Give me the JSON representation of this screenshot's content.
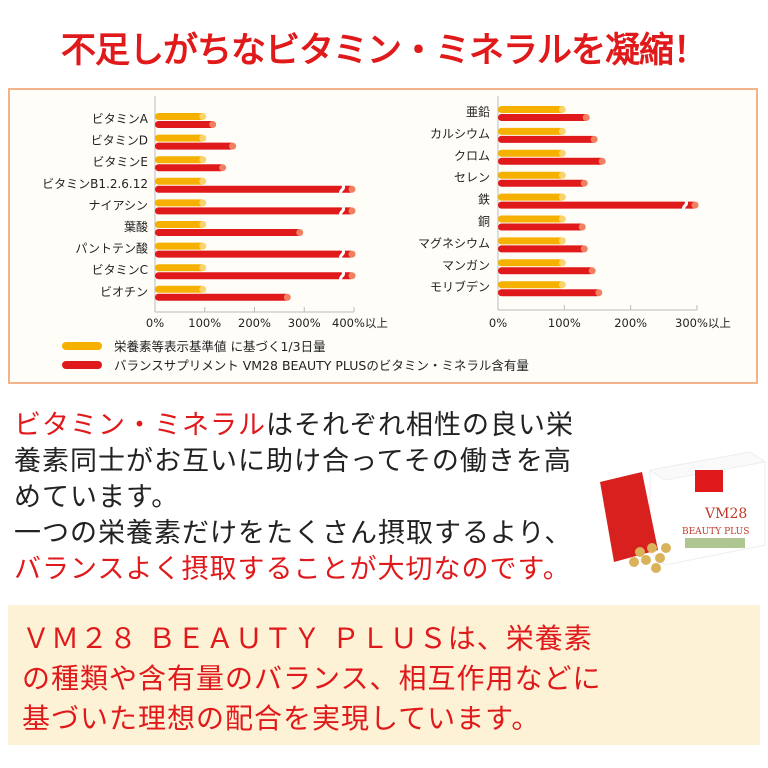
{
  "title": "不足しがちなビタミン・ミネラルを凝縮！",
  "colors": {
    "reference": "#f5b000",
    "product": "#e0191b",
    "accent": "#e0191b",
    "box_border": "#f2b38a",
    "bottom_bg": "#fdf1d6"
  },
  "chart_data": [
    {
      "type": "bar",
      "orientation": "horizontal",
      "categories": [
        "ビタミンA",
        "ビタミンD",
        "ビタミンE",
        "ビタミンB1.2.6.12",
        "ナイアシン",
        "葉酸",
        "パントテン酸",
        "ビタミンC",
        "ビオチン"
      ],
      "series": [
        {
          "name": "栄養素等表示基準値 に基づく1/3日量",
          "values": [
            100,
            100,
            100,
            100,
            100,
            100,
            100,
            100,
            100
          ]
        },
        {
          "name": "バランスサプリメント VM28 BEAUTY PLUSのビタミン・ミネラル含有量",
          "values": [
            120,
            160,
            140,
            400,
            400,
            295,
            400,
            400,
            270
          ],
          "over_max": [
            false,
            false,
            false,
            true,
            true,
            false,
            true,
            true,
            false
          ]
        }
      ],
      "xlim": [
        0,
        400
      ],
      "tick_labels": [
        "0%",
        "100%",
        "200%",
        "300%",
        "400%以上"
      ]
    },
    {
      "type": "bar",
      "orientation": "horizontal",
      "categories": [
        "亜鉛",
        "カルシウム",
        "クロム",
        "セレン",
        "鉄",
        "銅",
        "マグネシウム",
        "マンガン",
        "モリブデン"
      ],
      "series": [
        {
          "name": "栄養素等表示基準値 に基づく1/3日量",
          "values": [
            100,
            100,
            100,
            100,
            100,
            100,
            100,
            100,
            100
          ]
        },
        {
          "name": "バランスサプリメント VM28 BEAUTY PLUSのビタミン・ミネラル含有量",
          "values": [
            136,
            148,
            160,
            133,
            300,
            130,
            133,
            145,
            155
          ],
          "over_max": [
            false,
            false,
            false,
            false,
            true,
            false,
            false,
            false,
            false
          ]
        }
      ],
      "xlim": [
        0,
        300
      ],
      "tick_labels": [
        "0%",
        "100%",
        "200%",
        "300%以上"
      ]
    }
  ],
  "legend": {
    "reference": "栄養素等表示基準値 に基づく1/3日量",
    "product": "バランスサプリメント VM28 BEAUTY PLUSのビタミン・ミネラル含有量"
  },
  "paragraph": {
    "l1_red": "ビタミン・ミネラル",
    "l1_rest": "はそれぞれ相性の良い栄",
    "l2": "養素同士がお互いに助け合ってその働きを高",
    "l3": "めています。",
    "l4": "一つの栄養素だけをたくさん摂取するより、",
    "l5_red": "バランスよく摂取することが大切なのです。"
  },
  "product": {
    "name": "VM28",
    "sub": "BEAUTY PLUS"
  },
  "bottom": {
    "l1": "ＶＭ２８ ＢＥＡＵＴＹ ＰＬＵＳは、栄養素",
    "l2": "の種類や含有量のバランス、相互作用などに",
    "l3": "基づいた理想の配合を実現しています。"
  }
}
